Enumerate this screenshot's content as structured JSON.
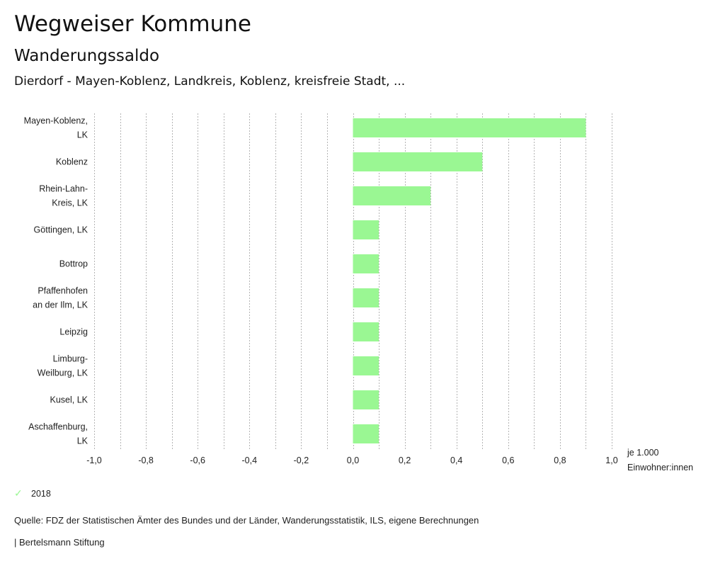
{
  "header": {
    "title": "Wegweiser Kommune",
    "subtitle": "Wanderungssaldo",
    "context": "Dierdorf - Mayen-Koblenz, Landkreis, Koblenz, kreisfreie Stadt, ..."
  },
  "chart_data": {
    "type": "bar",
    "orientation": "horizontal",
    "title": "Wanderungssaldo",
    "categories": [
      [
        "Mayen-Koblenz,",
        "LK"
      ],
      [
        "Koblenz"
      ],
      [
        "Rhein-Lahn-",
        "Kreis, LK"
      ],
      [
        "Göttingen, LK"
      ],
      [
        "Bottrop"
      ],
      [
        "Pfaffenhofen",
        "an der Ilm, LK"
      ],
      [
        "Leipzig"
      ],
      [
        "Limburg-",
        "Weilburg, LK"
      ],
      [
        "Kusel, LK"
      ],
      [
        "Aschaffenburg,",
        "LK"
      ]
    ],
    "series": [
      {
        "name": "2018",
        "color": "#9af793",
        "values": [
          0.9,
          0.5,
          0.3,
          0.1,
          0.1,
          0.1,
          0.1,
          0.1,
          0.1,
          0.1
        ]
      }
    ],
    "xlim": [
      -1.0,
      1.0
    ],
    "xticks": [
      -1.0,
      -0.8,
      -0.6,
      -0.4,
      -0.2,
      0.0,
      0.2,
      0.4,
      0.6,
      0.8,
      1.0
    ],
    "xtick_labels": [
      "-1,0",
      "-0,8",
      "-0,6",
      "-0,4",
      "-0,2",
      "0,0",
      "0,2",
      "0,4",
      "0,6",
      "0,8",
      "1,0"
    ],
    "grid_step": 0.1,
    "grid": true,
    "grid_style": "dotted",
    "xlabel": [
      "je 1.000",
      "Einwohner:innen"
    ],
    "ylabel": "",
    "legend_position": "bottom-left"
  },
  "legend": {
    "items": [
      {
        "label": "2018",
        "icon": "check-icon",
        "color": "#9af793"
      }
    ]
  },
  "footer": {
    "source": "Quelle: FDZ der Statistischen Ämter des Bundes und der Länder, Wanderungsstatistik, ILS, eigene Berechnungen",
    "credit": "| Bertelsmann Stiftung"
  }
}
